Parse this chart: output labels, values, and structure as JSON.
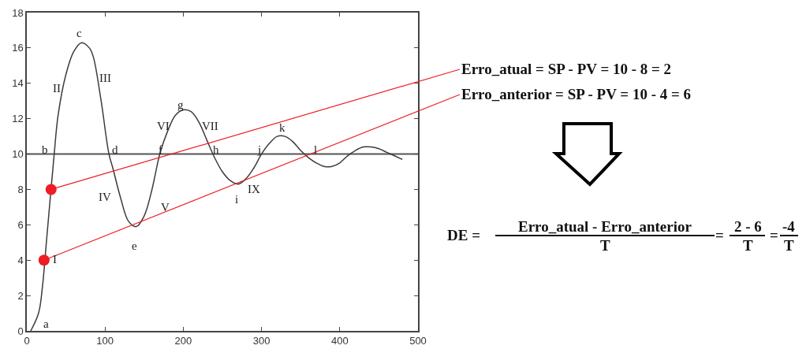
{
  "chart_data": {
    "type": "line",
    "xlim": [
      0,
      500
    ],
    "xticks": [
      0,
      100,
      200,
      300,
      400,
      500
    ],
    "ylim": [
      0,
      18
    ],
    "yticks": [
      0,
      2,
      4,
      6,
      8,
      10,
      12,
      14,
      16,
      18
    ],
    "grid": false,
    "marker": "none",
    "line_style": "solid",
    "series": [
      {
        "color": "#3c3c3c",
        "x": [
          5,
          15,
          20,
          25,
          35,
          40,
          50,
          60,
          70,
          80,
          85,
          95,
          105,
          110,
          120,
          130,
          140,
          150,
          160,
          170,
          180,
          190,
          200,
          210,
          220,
          230,
          240,
          250,
          260,
          270,
          280,
          290,
          300,
          310,
          320,
          330,
          340,
          350,
          360,
          370,
          380,
          390,
          400,
          410,
          420,
          430,
          440,
          450,
          460,
          470,
          480
        ],
        "values": [
          0,
          1,
          2.5,
          5,
          10,
          12.2,
          14.5,
          15.8,
          16.3,
          16,
          15.5,
          13,
          10,
          9.2,
          7.5,
          6.2,
          5.9,
          6.5,
          8,
          10,
          11.3,
          12.2,
          12.5,
          12.4,
          11.8,
          10.8,
          9.8,
          9,
          8.5,
          8.3,
          8.6,
          9.2,
          10,
          10.6,
          11,
          11,
          10.7,
          10.2,
          9.8,
          9.5,
          9.3,
          9.3,
          9.5,
          9.9,
          10.2,
          10.4,
          10.4,
          10.3,
          10.1,
          9.9,
          9.7
        ]
      },
      {
        "type": "scatter",
        "marker": "circle",
        "color": "#ee1c25",
        "x": [
          22,
          31
        ],
        "values": [
          4,
          8
        ]
      }
    ],
    "ref_lines": [
      {
        "axis": "y",
        "value": 10,
        "color": "#555555"
      }
    ],
    "annotations": [
      "a",
      "b",
      "c",
      "d",
      "e",
      "f",
      "g",
      "h",
      "i",
      "j",
      "k",
      "l",
      "I",
      "II",
      "III",
      "IV",
      "V",
      "VI",
      "VII",
      "IX",
      {
        "text": "Erro_atual = SP - PV = 10 - 8 = 2",
        "x": 31,
        "y": 8
      },
      {
        "text": "Erro_anterior = SP - PV = 10 - 4 = 6",
        "x": 22,
        "y": 4
      },
      "DE =",
      "Erro_atual - Erro_anterior",
      "T",
      "=",
      "2 - 6",
      "T",
      "=",
      "-4",
      "T"
    ]
  }
}
